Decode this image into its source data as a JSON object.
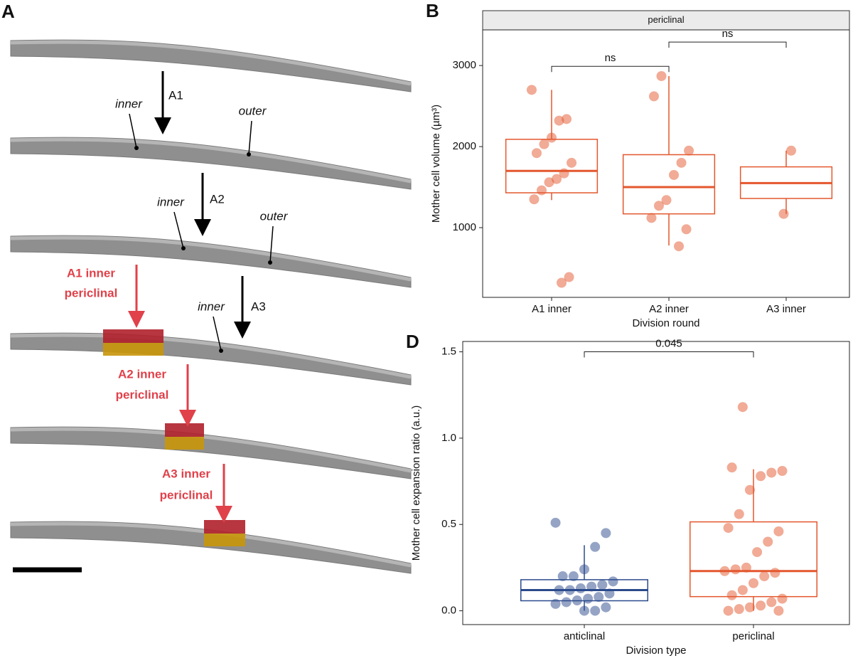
{
  "panel_a": {
    "letter": "A",
    "arrows": [
      "A1",
      "A2",
      "A3"
    ],
    "cell_labels": [
      "inner",
      "outer",
      "inner",
      "outer",
      "inner"
    ],
    "division_labels": [
      [
        "A1 inner",
        "periclinal"
      ],
      [
        "A2 inner",
        "periclinal"
      ],
      [
        "A3 inner",
        "periclinal"
      ]
    ]
  },
  "chart_data": [
    {
      "type": "box",
      "panel_label": "B",
      "facet": "periclinal",
      "y_label": "Mother cell volume (µm³)",
      "x_label": "Division round",
      "categories": [
        "A1 inner",
        "A2 inner",
        "A3 inner"
      ],
      "ylim": [
        140,
        3440
      ],
      "yticks": [
        1000,
        2000,
        3000
      ],
      "boxes": [
        {
          "color": "#e4572e",
          "q1": 1430,
          "median": 1700,
          "q3": 2090,
          "whisker_low": 1340,
          "whisker_high": 2700,
          "points": [
            2700,
            2340,
            2320,
            2110,
            2030,
            1920,
            1800,
            1670,
            1600,
            1560,
            1460,
            1350,
            390,
            320
          ]
        },
        {
          "color": "#e4572e",
          "q1": 1170,
          "median": 1500,
          "q3": 1900,
          "whisker_low": 780,
          "whisker_high": 2870,
          "points": [
            2870,
            2620,
            1950,
            1800,
            1650,
            1340,
            1270,
            1120,
            980,
            770
          ]
        },
        {
          "color": "#e4572e",
          "q1": 1360,
          "median": 1550,
          "q3": 1750,
          "whisker_low": 1170,
          "whisker_high": 1950,
          "points": [
            1950,
            1170
          ]
        }
      ],
      "annotations": [
        {
          "from": "A1 inner",
          "to": "A2 inner",
          "label": "ns",
          "y": 2990
        },
        {
          "from": "A2 inner",
          "to": "A3 inner",
          "label": "ns",
          "y": 3290
        }
      ]
    },
    {
      "type": "box",
      "panel_label": "D",
      "y_label": "Mother cell expansion ratio (a.u.)",
      "x_label": "Division type",
      "categories": [
        "anticlinal",
        "periclinal"
      ],
      "ylim": [
        -0.08,
        1.56
      ],
      "yticks": [
        {
          "value": 0,
          "label": "0.0"
        },
        0.5,
        {
          "value": 1,
          "label": "1.0"
        },
        1.5
      ],
      "boxes": [
        {
          "color": "#2b4a8c",
          "q1": 0.058,
          "median": 0.12,
          "q3": 0.18,
          "whisker_low": 0,
          "whisker_high": 0.38,
          "points": [
            0.51,
            0.45,
            0.37,
            0.24,
            0.2,
            0.2,
            0.17,
            0.15,
            0.14,
            0.13,
            0.12,
            0.12,
            0.1,
            0.08,
            0.07,
            0.06,
            0.05,
            0.04,
            0.02,
            0,
            0
          ]
        },
        {
          "color": "#e4572e",
          "q1": 0.082,
          "median": 0.23,
          "q3": 0.515,
          "whisker_low": 0,
          "whisker_high": 0.82,
          "points": [
            1.18,
            0.83,
            0.81,
            0.8,
            0.78,
            0.7,
            0.56,
            0.48,
            0.46,
            0.4,
            0.34,
            0.25,
            0.24,
            0.23,
            0.22,
            0.2,
            0.16,
            0.12,
            0.09,
            0.07,
            0.05,
            0.03,
            0.02,
            0.01,
            0,
            0
          ]
        }
      ],
      "annotations": [
        {
          "from": "anticlinal",
          "to": "periclinal",
          "label": "0.045",
          "y": 1.5
        }
      ]
    }
  ]
}
